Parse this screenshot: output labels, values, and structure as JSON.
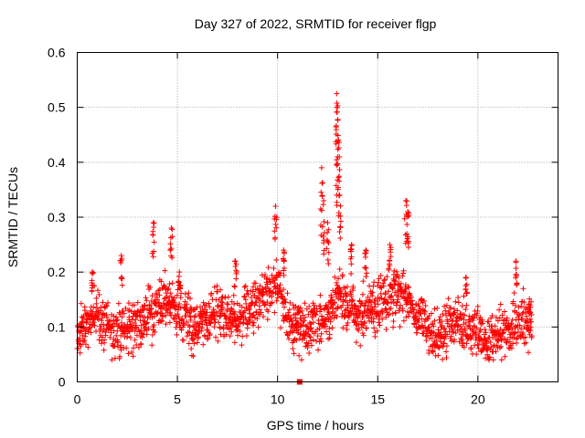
{
  "chart_data": {
    "type": "scatter",
    "title": "Day 327 of 2022, SRMTID for receiver flgp",
    "xlabel": "GPS time / hours",
    "ylabel": "SRMTID / TECUs",
    "xlim": [
      0,
      24
    ],
    "ylim": [
      0,
      0.6
    ],
    "xticks": [
      "0",
      "5",
      "10",
      "15",
      "20"
    ],
    "yticks": [
      "0",
      "0.1",
      "0.2",
      "0.3",
      "0.4",
      "0.5",
      "0.6"
    ],
    "grid": true,
    "marker": "+",
    "color": "#ff0000",
    "series": [
      {
        "name": "SRMTID",
        "baseline": [
          [
            0.0,
            0.08
          ],
          [
            0.5,
            0.11
          ],
          [
            1.0,
            0.13
          ],
          [
            1.5,
            0.1
          ],
          [
            2.0,
            0.09
          ],
          [
            2.5,
            0.1
          ],
          [
            3.0,
            0.1
          ],
          [
            3.5,
            0.12
          ],
          [
            4.0,
            0.13
          ],
          [
            4.5,
            0.15
          ],
          [
            5.0,
            0.13
          ],
          [
            5.5,
            0.11
          ],
          [
            6.0,
            0.1
          ],
          [
            6.5,
            0.12
          ],
          [
            7.0,
            0.13
          ],
          [
            7.5,
            0.12
          ],
          [
            8.0,
            0.11
          ],
          [
            8.5,
            0.13
          ],
          [
            9.0,
            0.14
          ],
          [
            9.5,
            0.17
          ],
          [
            10.0,
            0.18
          ],
          [
            10.5,
            0.11
          ],
          [
            11.0,
            0.1
          ],
          [
            11.5,
            0.09
          ],
          [
            12.0,
            0.1
          ],
          [
            12.5,
            0.12
          ],
          [
            13.0,
            0.15
          ],
          [
            13.5,
            0.14
          ],
          [
            14.0,
            0.12
          ],
          [
            14.5,
            0.13
          ],
          [
            15.0,
            0.14
          ],
          [
            15.5,
            0.15
          ],
          [
            16.0,
            0.16
          ],
          [
            16.5,
            0.15
          ],
          [
            17.0,
            0.12
          ],
          [
            17.5,
            0.1
          ],
          [
            18.0,
            0.09
          ],
          [
            18.5,
            0.1
          ],
          [
            19.0,
            0.11
          ],
          [
            19.5,
            0.1
          ],
          [
            20.0,
            0.09
          ],
          [
            20.5,
            0.08
          ],
          [
            21.0,
            0.08
          ],
          [
            21.5,
            0.09
          ],
          [
            22.0,
            0.12
          ],
          [
            22.5,
            0.11
          ],
          [
            22.7,
            0.1
          ]
        ],
        "peaks": [
          [
            0.75,
            0.2
          ],
          [
            2.2,
            0.23
          ],
          [
            3.8,
            0.29
          ],
          [
            4.7,
            0.28
          ],
          [
            5.1,
            0.2
          ],
          [
            7.9,
            0.22
          ],
          [
            9.9,
            0.32
          ],
          [
            10.3,
            0.24
          ],
          [
            12.2,
            0.39
          ],
          [
            12.3,
            0.33
          ],
          [
            12.5,
            0.29
          ],
          [
            12.95,
            0.525
          ],
          [
            12.98,
            0.5
          ],
          [
            13.05,
            0.44
          ],
          [
            13.0,
            0.41
          ],
          [
            13.1,
            0.34
          ],
          [
            13.7,
            0.25
          ],
          [
            14.4,
            0.24
          ],
          [
            15.6,
            0.25
          ],
          [
            16.4,
            0.33
          ],
          [
            16.5,
            0.31
          ],
          [
            19.4,
            0.19
          ],
          [
            21.9,
            0.22
          ],
          [
            22.6,
            0.14
          ]
        ],
        "outlier": [
          11.1,
          0.0
        ]
      }
    ]
  }
}
